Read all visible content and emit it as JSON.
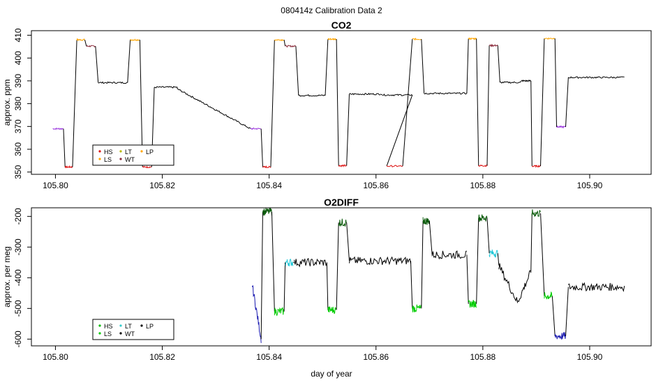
{
  "title": "080414z   Calibration Data 2",
  "xlabel": "day of year",
  "x_ticks": [
    "105.80",
    "105.82",
    "105.84",
    "105.86",
    "105.88",
    "105.90"
  ],
  "chart_data": [
    {
      "type": "line",
      "title": "CO2",
      "ylabel": "approx. ppm",
      "xlim": [
        105.7955,
        105.9115
      ],
      "ylim": [
        349,
        412
      ],
      "x_ticks": [
        105.8,
        105.82,
        105.84,
        105.86,
        105.88,
        105.9
      ],
      "y_ticks": [
        350,
        360,
        370,
        380,
        390,
        400,
        410
      ],
      "noise": 0.35,
      "legend": [
        {
          "label": "HS",
          "color": "#dd1111"
        },
        {
          "label": "LT",
          "color": "#b8b800"
        },
        {
          "label": "LP",
          "color": "#ffa500"
        },
        {
          "label": "LS",
          "color": "#ffa500"
        },
        {
          "label": "WT",
          "color": "#8b2a3a"
        }
      ],
      "segments": [
        {
          "x0": 105.7995,
          "x1": 105.8015,
          "y": 369,
          "color": "#9933dd"
        },
        {
          "x0": 105.8018,
          "x1": 105.8032,
          "y": 352.2,
          "color": "#dd1111"
        },
        {
          "x0": 105.804,
          "x1": 105.8055,
          "y": 408,
          "color": "#ffa500"
        },
        {
          "x0": 105.8058,
          "x1": 105.8075,
          "y": 405.2,
          "color": "#8b2a3a"
        },
        {
          "x0": 105.808,
          "x1": 105.8135,
          "y": 389.2,
          "color": "#000000"
        },
        {
          "x0": 105.814,
          "x1": 105.8158,
          "y": 408,
          "color": "#ffa500"
        },
        {
          "x0": 105.8163,
          "x1": 105.818,
          "y": 352.2,
          "color": "#dd1111"
        },
        {
          "x0": 105.8185,
          "x1": 105.8228,
          "y": 387.2,
          "color": "#000000"
        },
        {
          "x0": 105.8228,
          "x1": 105.8365,
          "y0": 386.5,
          "y": 369,
          "color": "#000000"
        },
        {
          "x0": 105.8365,
          "x1": 105.8385,
          "y": 369,
          "color": "#9933dd"
        },
        {
          "x0": 105.8388,
          "x1": 105.8403,
          "y": 352.2,
          "color": "#dd1111"
        },
        {
          "x0": 105.841,
          "x1": 105.8428,
          "y": 408,
          "color": "#ffa500"
        },
        {
          "x0": 105.843,
          "x1": 105.845,
          "y": 405.2,
          "color": "#8b2a3a"
        },
        {
          "x0": 105.8455,
          "x1": 105.8505,
          "y": 383.6,
          "color": "#000000"
        },
        {
          "x0": 105.851,
          "x1": 105.8526,
          "y": 408.3,
          "color": "#ffa500"
        },
        {
          "x0": 105.853,
          "x1": 105.8545,
          "y": 352.8,
          "color": "#dd1111"
        },
        {
          "x0": 105.855,
          "x1": 105.8608,
          "y": 384.2,
          "color": "#000000"
        },
        {
          "x0": 105.8612,
          "x1": 105.8668,
          "y": 383.8,
          "color": "#000000"
        },
        {
          "x0": 105.862,
          "x1": 105.865,
          "y": 352.6,
          "color": "#dd1111"
        },
        {
          "x0": 105.8668,
          "x1": 105.8685,
          "y": 408.3,
          "color": "#ffa500"
        },
        {
          "x0": 105.869,
          "x1": 105.877,
          "y": 384.5,
          "color": "#000000"
        },
        {
          "x0": 105.8773,
          "x1": 105.8788,
          "y": 408.5,
          "color": "#ffa500"
        },
        {
          "x0": 105.8792,
          "x1": 105.8808,
          "y": 352.8,
          "color": "#dd1111"
        },
        {
          "x0": 105.8812,
          "x1": 105.8828,
          "y": 405.5,
          "color": "#8b2a3a"
        },
        {
          "x0": 105.8832,
          "x1": 105.887,
          "y": 389.3,
          "color": "#000000"
        },
        {
          "x0": 105.8872,
          "x1": 105.889,
          "y": 390,
          "color": "#000000"
        },
        {
          "x0": 105.8892,
          "x1": 105.8908,
          "y": 352.6,
          "color": "#dd1111"
        },
        {
          "x0": 105.8915,
          "x1": 105.8935,
          "y": 408.6,
          "color": "#ffa500"
        },
        {
          "x0": 105.8938,
          "x1": 105.8955,
          "y": 369.8,
          "color": "#9933dd"
        },
        {
          "x0": 105.896,
          "x1": 105.9065,
          "y": 391.5,
          "color": "#000000"
        }
      ]
    },
    {
      "type": "line",
      "title": "O2DIFF",
      "ylabel": "approx. per meg",
      "xlim": [
        105.7955,
        105.9115
      ],
      "ylim": [
        -622,
        -172
      ],
      "x_ticks": [
        105.8,
        105.82,
        105.84,
        105.86,
        105.88,
        105.9
      ],
      "y_ticks": [
        -200,
        -300,
        -400,
        -500,
        -600
      ],
      "noise": 13,
      "legend": [
        {
          "label": "HS",
          "color": "#00bb00"
        },
        {
          "label": "LT",
          "color": "#33cccc"
        },
        {
          "label": "LP",
          "color": "#000000"
        },
        {
          "label": "LS",
          "color": "#00cc00"
        },
        {
          "label": "WT",
          "color": "#000000"
        }
      ],
      "segments": [
        {
          "x0": 105.8368,
          "x1": 105.8385,
          "y0": -420,
          "y": -600,
          "color": "#1a1ab0"
        },
        {
          "x0": 105.8388,
          "x1": 105.8405,
          "y": -185,
          "color": "#0a5a0a"
        },
        {
          "x0": 105.841,
          "x1": 105.8428,
          "y": -510,
          "color": "#00cc00"
        },
        {
          "x0": 105.843,
          "x1": 105.8445,
          "y": -350,
          "color": "#22c8d8"
        },
        {
          "x0": 105.8447,
          "x1": 105.8508,
          "y": -350,
          "color": "#000000"
        },
        {
          "x0": 105.851,
          "x1": 105.8526,
          "y": -505,
          "color": "#00cc00"
        },
        {
          "x0": 105.853,
          "x1": 105.8545,
          "y": -220,
          "color": "#0a5a0a"
        },
        {
          "x0": 105.855,
          "x1": 105.8665,
          "y": -345,
          "color": "#000000"
        },
        {
          "x0": 105.8668,
          "x1": 105.8685,
          "y": -500,
          "color": "#00cc00"
        },
        {
          "x0": 105.8688,
          "x1": 105.87,
          "y": -215,
          "color": "#0a5a0a"
        },
        {
          "x0": 105.8705,
          "x1": 105.877,
          "y": -325,
          "color": "#000000"
        },
        {
          "x0": 105.8773,
          "x1": 105.8788,
          "y": -485,
          "color": "#00cc00"
        },
        {
          "x0": 105.8792,
          "x1": 105.8808,
          "y": -205,
          "color": "#0a5a0a"
        },
        {
          "x0": 105.8812,
          "x1": 105.8828,
          "y": -320,
          "color": "#22c8d8"
        },
        {
          "x0": 105.883,
          "x1": 105.8865,
          "y0": -360,
          "y": -480,
          "color": "#000000"
        },
        {
          "x0": 105.8865,
          "x1": 105.889,
          "y0": -480,
          "y": -380,
          "color": "#000000"
        },
        {
          "x0": 105.8892,
          "x1": 105.8908,
          "y": -190,
          "color": "#0a5a0a"
        },
        {
          "x0": 105.8915,
          "x1": 105.893,
          "y": -460,
          "color": "#00cc00"
        },
        {
          "x0": 105.8935,
          "x1": 105.8955,
          "y": -590,
          "color": "#1a1ab0"
        },
        {
          "x0": 105.896,
          "x1": 105.9065,
          "y": -430,
          "color": "#000000"
        }
      ]
    }
  ]
}
